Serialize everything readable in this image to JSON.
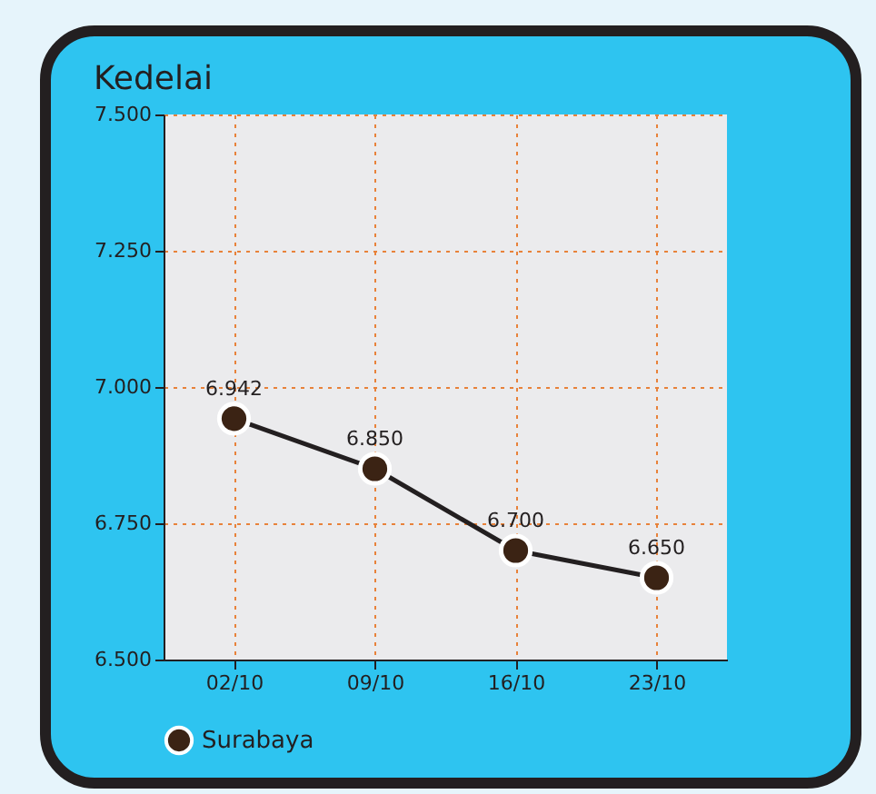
{
  "chart_data": {
    "type": "line",
    "title": "Kedelai",
    "categories": [
      "02/10",
      "09/10",
      "16/10",
      "23/10"
    ],
    "series": [
      {
        "name": "Surabaya",
        "color": "#3b2314",
        "values": [
          6942,
          6850,
          6700,
          6650
        ]
      }
    ],
    "value_labels": [
      "6.942",
      "6.850",
      "6.700",
      "6.650"
    ],
    "ylim": [
      6500,
      7500
    ],
    "yticks": [
      {
        "value": 6500,
        "label": "6.500"
      },
      {
        "value": 6750,
        "label": "6.750"
      },
      {
        "value": 7000,
        "label": "7.000"
      },
      {
        "value": 7250,
        "label": "7.250"
      },
      {
        "value": 7500,
        "label": "7.500"
      }
    ],
    "grid": true,
    "legend": "bottom",
    "marker": "circle",
    "line_style": "solid"
  }
}
